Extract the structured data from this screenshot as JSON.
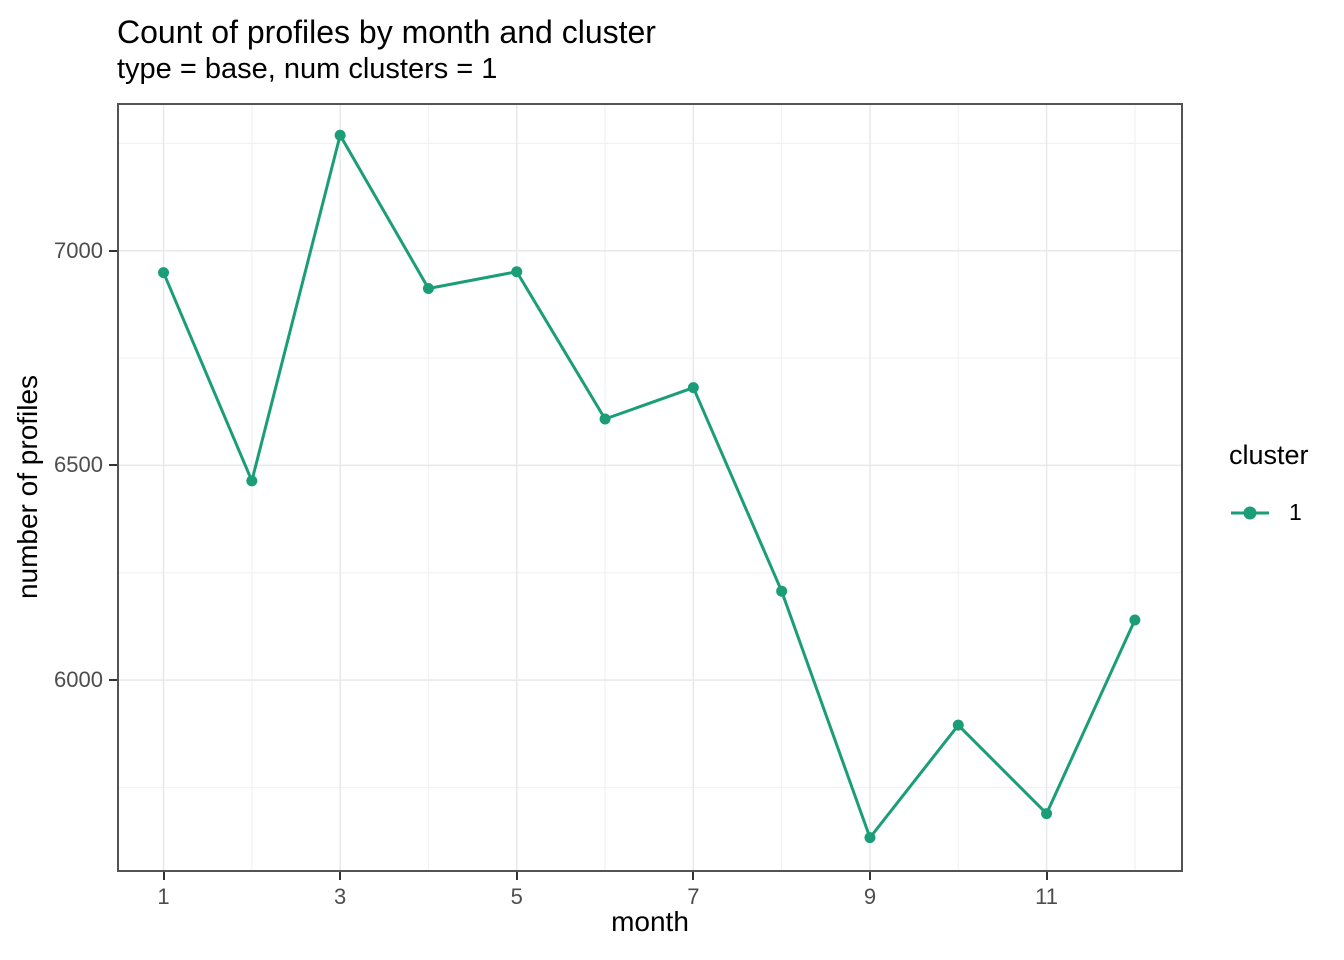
{
  "chart_data": {
    "type": "line",
    "title": "Count of profiles by month and cluster",
    "subtitle": "type = base, num clusters = 1",
    "xlabel": "month",
    "ylabel": "number of profiles",
    "x": [
      1,
      2,
      3,
      4,
      5,
      6,
      7,
      8,
      9,
      10,
      11,
      12
    ],
    "series": [
      {
        "name": "1",
        "color": "#1b9e77",
        "values": [
          6949,
          6464,
          7269,
          6912,
          6951,
          6608,
          6681,
          6207,
          5633,
          5895,
          5689,
          6140
        ]
      }
    ],
    "x_domain": [
      0.473,
      12.545
    ],
    "y_domain": [
      5553,
      7344
    ],
    "x_major_breaks": [
      1,
      3,
      5,
      7,
      9,
      11
    ],
    "x_minor_breaks": [
      2,
      4,
      6,
      8,
      10,
      12
    ],
    "y_major_breaks": [
      7000,
      6500,
      6000
    ],
    "y_minor_breaks": [
      7250,
      6750,
      6250,
      5750
    ],
    "x_tick_labels": [
      "1",
      "3",
      "5",
      "7",
      "9",
      "11"
    ],
    "y_tick_labels": [
      "7000",
      "6500",
      "6000"
    ],
    "grid": true,
    "legend": {
      "title": "cluster",
      "position": "right",
      "entries": [
        {
          "label": "1",
          "color": "#1b9e77"
        }
      ]
    }
  },
  "styles": {
    "accent": "#1b9e77",
    "grid_major": "#e8e8e8",
    "grid_minor": "#f2f2f2",
    "panel_border": "#535353",
    "axis_text": "#4d4d4d",
    "tick_color": "#333333",
    "background": "#ffffff"
  }
}
